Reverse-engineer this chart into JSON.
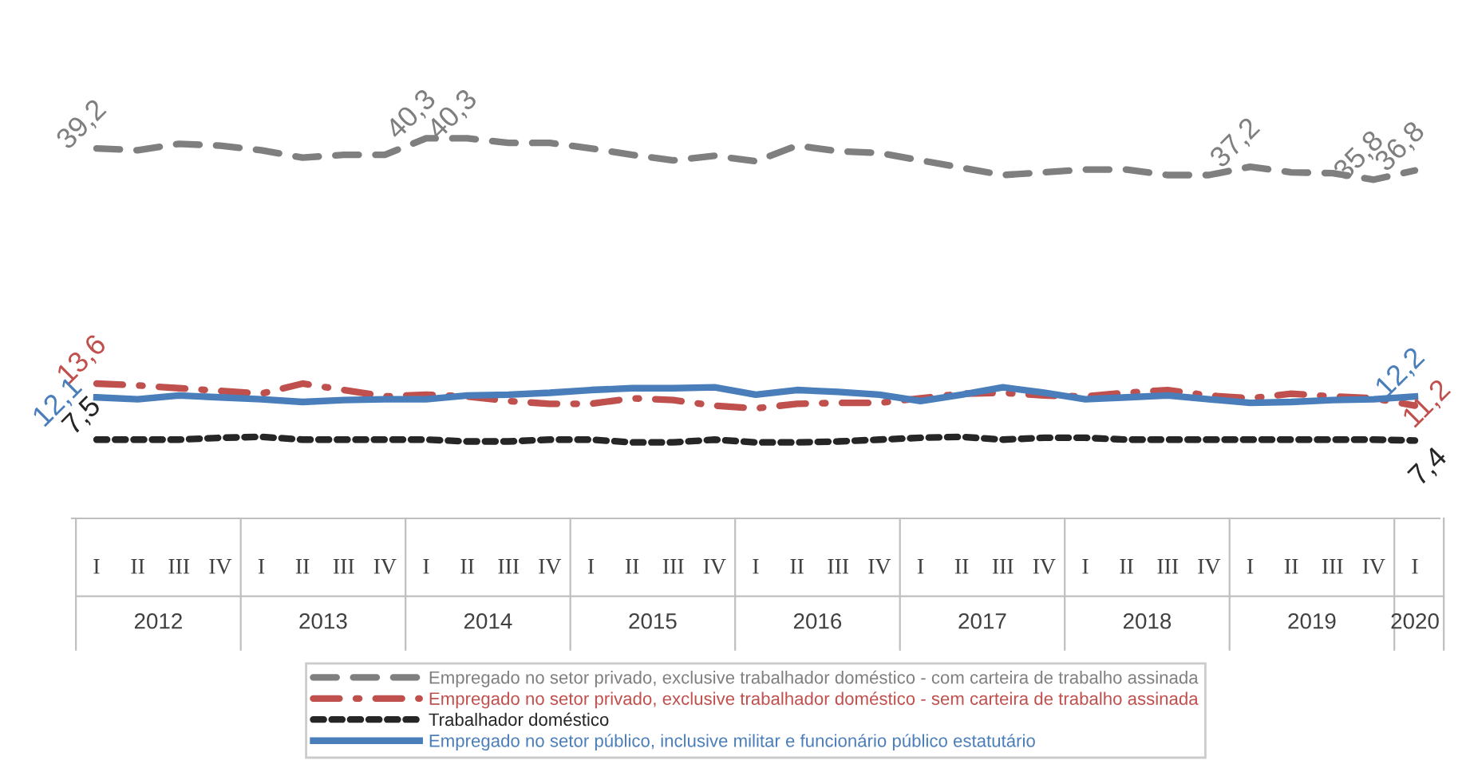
{
  "chart_data": {
    "type": "line",
    "categories": [
      "I",
      "II",
      "III",
      "IV",
      "I",
      "II",
      "III",
      "IV",
      "I",
      "II",
      "III",
      "IV",
      "I",
      "II",
      "III",
      "IV",
      "I",
      "II",
      "III",
      "IV",
      "I",
      "II",
      "III",
      "IV",
      "I",
      "II",
      "III",
      "IV",
      "I",
      "II",
      "III",
      "IV",
      "I"
    ],
    "annotations": [
      "2012",
      "2013",
      "2014",
      "2015",
      "2016",
      "2017",
      "2018",
      "2019",
      "2020"
    ],
    "series": [
      {
        "name": "Empregado no setor privado, exclusive trabalhador doméstico - com carteira de trabalho assinada",
        "color": "#7f7f7f",
        "line_style": "dashed",
        "values": [
          39.2,
          39.0,
          39.7,
          39.5,
          39.0,
          38.2,
          38.5,
          38.5,
          40.3,
          40.3,
          39.8,
          39.8,
          39.2,
          38.5,
          37.9,
          38.4,
          37.8,
          39.5,
          38.9,
          38.7,
          37.9,
          37.1,
          36.3,
          36.6,
          36.9,
          36.9,
          36.3,
          36.3,
          37.2,
          36.6,
          36.5,
          35.8,
          36.8
        ],
        "value_labels": [
          "39,2",
          null,
          null,
          null,
          null,
          null,
          null,
          null,
          "40,3",
          "40,3",
          null,
          null,
          null,
          null,
          null,
          null,
          null,
          null,
          null,
          null,
          null,
          null,
          null,
          null,
          null,
          null,
          null,
          null,
          "37,2",
          null,
          null,
          "35,8",
          "36,8"
        ]
      },
      {
        "name": "Empregado no setor privado, exclusive trabalhador doméstico - sem carteira de trabalho assinada",
        "color": "#c0504d",
        "line_style": "dashdot",
        "values": [
          13.6,
          13.4,
          13.1,
          12.8,
          12.5,
          13.6,
          12.9,
          12.2,
          12.4,
          12.2,
          11.7,
          11.4,
          11.4,
          12.0,
          11.8,
          11.2,
          10.9,
          11.4,
          11.5,
          11.5,
          12.0,
          12.5,
          12.6,
          12.3,
          12.2,
          12.6,
          12.9,
          12.3,
          12.0,
          12.5,
          12.2,
          12.0,
          11.2
        ],
        "value_labels": [
          "13,6",
          null,
          null,
          null,
          null,
          null,
          null,
          null,
          null,
          null,
          null,
          null,
          null,
          null,
          null,
          null,
          null,
          null,
          null,
          null,
          null,
          null,
          null,
          null,
          null,
          null,
          null,
          null,
          null,
          null,
          null,
          null,
          "11,2"
        ]
      },
      {
        "name": "Trabalhador doméstico",
        "color": "#262626",
        "line_style": "dotted",
        "values": [
          7.5,
          7.5,
          7.5,
          7.7,
          7.8,
          7.5,
          7.5,
          7.5,
          7.5,
          7.3,
          7.3,
          7.5,
          7.5,
          7.2,
          7.2,
          7.5,
          7.2,
          7.2,
          7.3,
          7.5,
          7.7,
          7.8,
          7.5,
          7.7,
          7.7,
          7.5,
          7.5,
          7.5,
          7.5,
          7.5,
          7.5,
          7.5,
          7.4
        ],
        "value_labels": [
          "7,5",
          null,
          null,
          null,
          null,
          null,
          null,
          null,
          null,
          null,
          null,
          null,
          null,
          null,
          null,
          null,
          null,
          null,
          null,
          null,
          null,
          null,
          null,
          null,
          null,
          null,
          null,
          null,
          null,
          null,
          null,
          null,
          "7,4"
        ]
      },
      {
        "name": "Empregado no setor público, inclusive militar e funcionário público estatutário",
        "color": "#4a7ebb",
        "line_style": "solid",
        "values": [
          12.1,
          11.9,
          12.3,
          12.1,
          11.9,
          11.6,
          11.8,
          11.9,
          11.9,
          12.3,
          12.4,
          12.6,
          12.9,
          13.1,
          13.1,
          13.2,
          12.4,
          12.9,
          12.7,
          12.4,
          11.7,
          12.4,
          13.2,
          12.6,
          11.9,
          12.1,
          12.3,
          11.9,
          11.5,
          11.6,
          11.8,
          11.9,
          12.2
        ],
        "value_labels": [
          "12,1",
          null,
          null,
          null,
          null,
          null,
          null,
          null,
          null,
          null,
          null,
          null,
          null,
          null,
          null,
          null,
          null,
          null,
          null,
          null,
          null,
          null,
          null,
          null,
          null,
          null,
          null,
          null,
          null,
          null,
          null,
          null,
          "12,2"
        ]
      }
    ],
    "legend": "bottom",
    "grid": false
  }
}
